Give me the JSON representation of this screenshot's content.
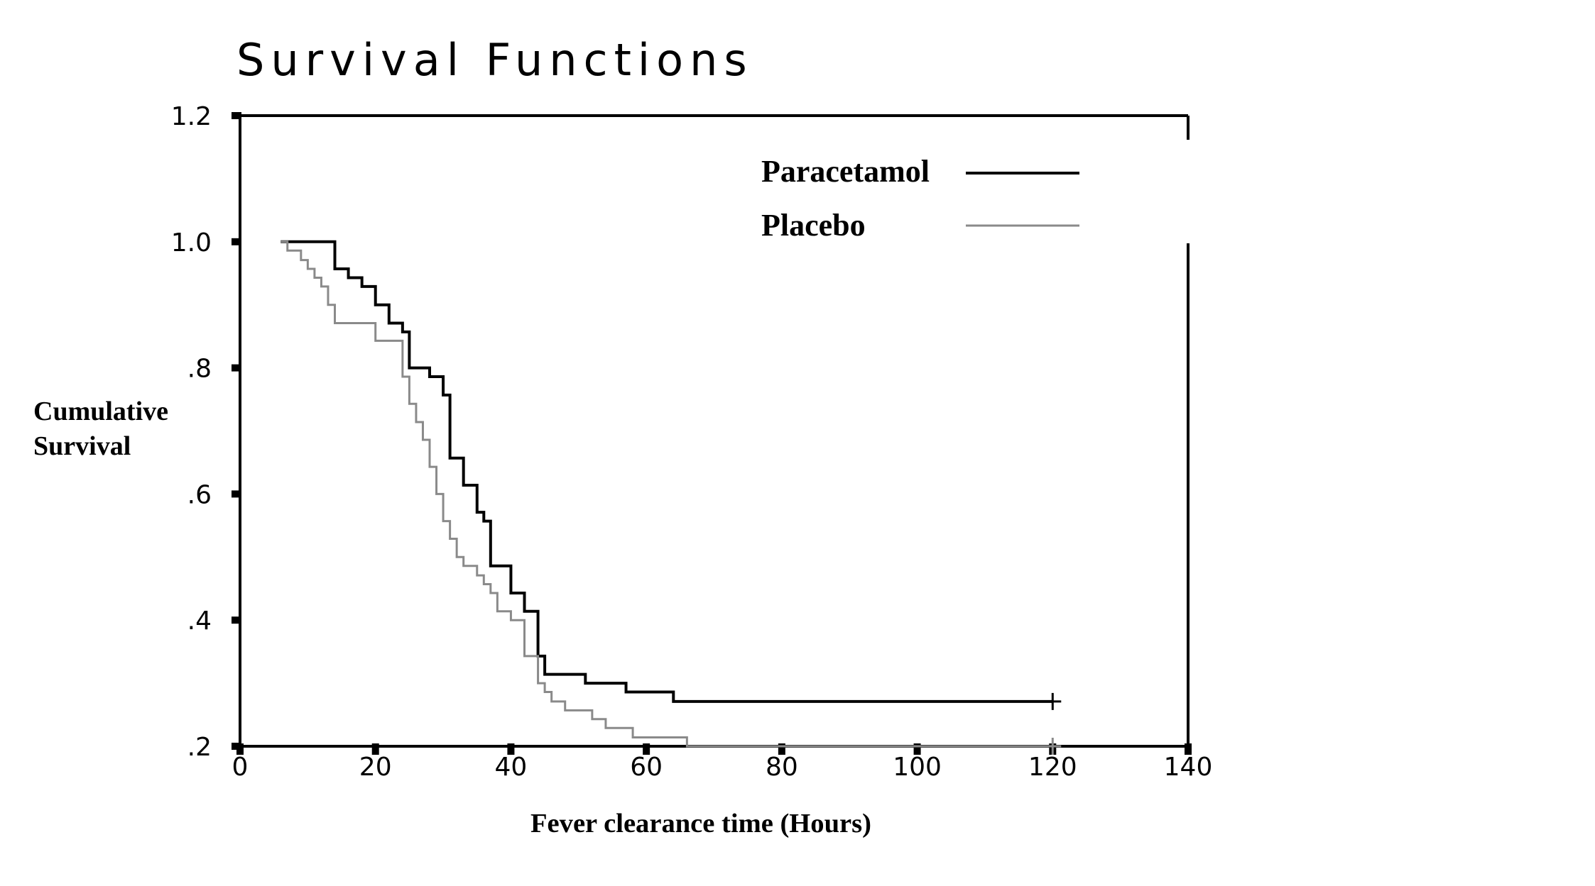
{
  "chart_data": {
    "type": "line",
    "title": "Survival Functions",
    "xlabel": "Fever clearance time (Hours)",
    "ylabel_lines": [
      "Cumulative",
      "Survival"
    ],
    "xlim": [
      0,
      140
    ],
    "ylim": [
      0.2,
      1.2
    ],
    "x_ticks": [
      0,
      20,
      40,
      60,
      80,
      100,
      120,
      140
    ],
    "x_tick_labels": [
      "0",
      "20",
      "40",
      "60",
      "80",
      "100",
      "120",
      "140"
    ],
    "y_ticks": [
      0.2,
      0.4,
      0.6,
      0.8,
      1.0,
      1.2
    ],
    "y_tick_labels": [
      ".2",
      ".4",
      ".6",
      ".8",
      "1.0",
      "1.2"
    ],
    "grid": false,
    "legend_position": "top-right",
    "series": [
      {
        "name": "Paracetamol",
        "color": "#000000",
        "step": true,
        "x": [
          6,
          12,
          14,
          16,
          18,
          20,
          22,
          24,
          25,
          28,
          30,
          31,
          33,
          35,
          36,
          37,
          40,
          42,
          44,
          45,
          51,
          57,
          64,
          120
        ],
        "y": [
          1.0,
          1.0,
          0.957,
          0.943,
          0.929,
          0.9,
          0.871,
          0.857,
          0.8,
          0.786,
          0.757,
          0.657,
          0.614,
          0.571,
          0.557,
          0.486,
          0.443,
          0.414,
          0.343,
          0.314,
          0.3,
          0.286,
          0.271,
          0.271
        ],
        "censored_x": [
          120
        ],
        "censored_y": [
          0.271
        ]
      },
      {
        "name": "Placebo",
        "color": "#8a8a8a",
        "step": true,
        "x": [
          6,
          7,
          9,
          10,
          11,
          12,
          13,
          14,
          20,
          24,
          25,
          26,
          27,
          28,
          29,
          30,
          31,
          32,
          33,
          35,
          36,
          37,
          38,
          40,
          42,
          44,
          45,
          46,
          48,
          52,
          54,
          58,
          66,
          120
        ],
        "y": [
          1.0,
          0.986,
          0.971,
          0.957,
          0.943,
          0.929,
          0.9,
          0.871,
          0.843,
          0.786,
          0.743,
          0.714,
          0.686,
          0.643,
          0.6,
          0.557,
          0.529,
          0.5,
          0.486,
          0.471,
          0.457,
          0.443,
          0.414,
          0.4,
          0.343,
          0.3,
          0.286,
          0.271,
          0.257,
          0.243,
          0.229,
          0.214,
          0.2,
          0.2
        ],
        "censored_x": [
          120
        ],
        "censored_y": [
          0.2
        ]
      }
    ]
  }
}
